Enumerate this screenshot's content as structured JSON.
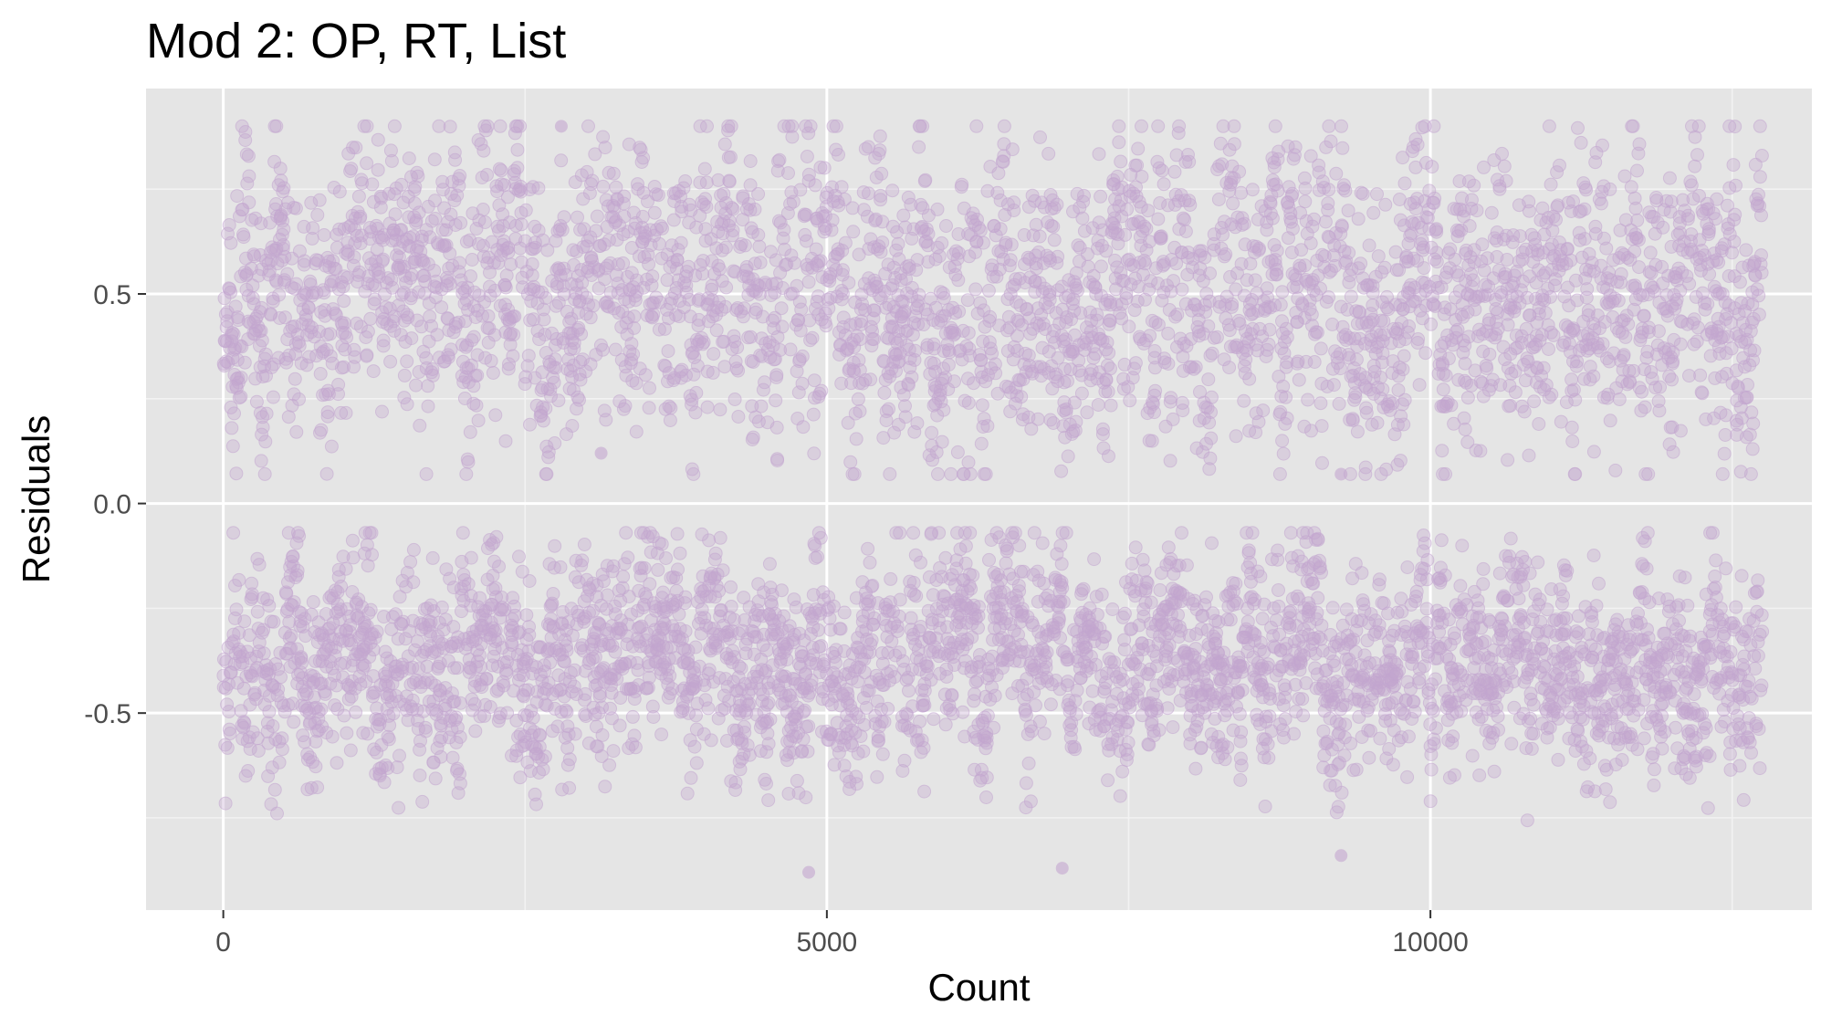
{
  "chart_data": {
    "type": "scatter",
    "title": "Mod 2: OP, RT, List",
    "xlabel": "Count",
    "ylabel": "Residuals",
    "xlim": [
      -640,
      13160
    ],
    "ylim": [
      -0.97,
      0.99
    ],
    "x_ticks": [
      0,
      5000,
      10000
    ],
    "x_tick_labels": [
      "0",
      "5000",
      "10000"
    ],
    "y_ticks": [
      -0.5,
      0.0,
      0.5
    ],
    "y_tick_labels": [
      "-0.5",
      "0.0",
      "0.5"
    ],
    "x_minor_ticks": [
      2500,
      7500,
      12500
    ],
    "y_minor_ticks": [
      -0.75,
      -0.25,
      0.25,
      0.75
    ],
    "grid": true,
    "legend": "none",
    "point_color": "#c3a5cf",
    "point_opacity": 0.35,
    "panel_background": "#e5e5e5",
    "n_points": 12750,
    "series": [
      {
        "band_center": 0.5,
        "band_halfwidth": 0.4,
        "approx_range": [
          0.07,
          0.9
        ]
      },
      {
        "band_center": -0.38,
        "band_halfwidth": 0.3,
        "approx_range": [
          -0.88,
          -0.07
        ]
      }
    ],
    "notable_points": [
      {
        "x": 2800,
        "y": 0.9
      },
      {
        "x": 4850,
        "y": -0.88
      },
      {
        "x": 6950,
        "y": -0.87
      },
      {
        "x": 9260,
        "y": 0.07
      },
      {
        "x": 9260,
        "y": -0.84
      },
      {
        "x": 3130,
        "y": 0.12
      }
    ]
  }
}
